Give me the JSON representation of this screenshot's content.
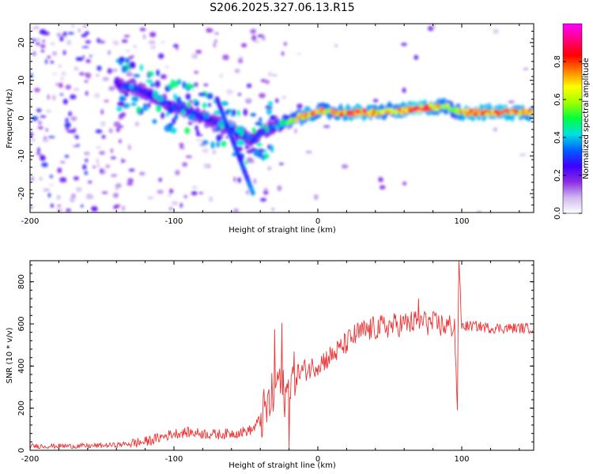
{
  "title": "S206.2025.327.06.13.R15",
  "chart_data": [
    {
      "type": "heatmap",
      "xlabel": "Height of straight line (km)",
      "ylabel": "Frequency (Hz)",
      "xlim": [
        -200,
        150
      ],
      "ylim": [
        -25,
        25
      ],
      "xticks": [
        -200,
        -100,
        0,
        100
      ],
      "yticks": [
        20,
        10,
        0,
        -10,
        -20
      ],
      "colorbar": {
        "label": "Normalized spectral amplitude",
        "range": [
          0,
          1
        ],
        "ticks": [
          0.0,
          0.2,
          0.4,
          0.6,
          0.8
        ],
        "colors": [
          "#ffffff",
          "#d0b8f0",
          "#8a2be2",
          "#3c00ff",
          "#0060ff",
          "#00e0e0",
          "#00ff40",
          "#a0ff00",
          "#ffff00",
          "#ff8000",
          "#ff0000",
          "#ff0080",
          "#ff00ff"
        ]
      },
      "ridge": {
        "name": "dominant frequency track",
        "x": [
          -140,
          -130,
          -120,
          -110,
          -100,
          -90,
          -80,
          -70,
          -60,
          -50,
          -45,
          -40,
          -35,
          -30,
          -25,
          -20,
          -15,
          -10,
          -5,
          0,
          10,
          20,
          30,
          40,
          50,
          60,
          70,
          80,
          90,
          95,
          100,
          110,
          120,
          130,
          140,
          150
        ],
        "y": [
          9,
          8,
          7,
          5,
          3,
          2,
          0,
          -1,
          -3,
          -5,
          -6,
          -4,
          -3,
          -2,
          -1.5,
          -1,
          0,
          0.5,
          1,
          2,
          1.5,
          1.5,
          1.5,
          1.5,
          2,
          2,
          2.5,
          3,
          3,
          2,
          1.5,
          1.5,
          1.5,
          1.5,
          1.5,
          1.5
        ],
        "amplitude": [
          0.3,
          0.25,
          0.3,
          0.3,
          0.3,
          0.3,
          0.3,
          0.25,
          0.3,
          0.35,
          0.3,
          0.3,
          0.3,
          0.35,
          0.45,
          0.6,
          0.7,
          0.75,
          0.8,
          0.7,
          0.7,
          0.8,
          0.85,
          0.75,
          0.7,
          0.8,
          0.9,
          0.75,
          0.7,
          0.55,
          0.8,
          0.85,
          0.8,
          0.85,
          0.8,
          0.75
        ]
      },
      "branch": {
        "name": "secondary descending track",
        "x": [
          -70,
          -65,
          -60,
          -55,
          -50,
          -45
        ],
        "y": [
          5,
          0,
          -5,
          -10,
          -15,
          -20
        ],
        "amplitude": [
          0.25,
          0.3,
          0.3,
          0.3,
          0.3,
          0.35
        ]
      }
    },
    {
      "type": "line",
      "xlabel": "Height of straight line (km)",
      "ylabel": "SNR (10 * v/v)",
      "xlim": [
        -200,
        150
      ],
      "ylim": [
        0,
        900
      ],
      "xticks": [
        -200,
        -100,
        0,
        100
      ],
      "yticks": [
        0,
        200,
        400,
        600,
        800
      ],
      "series": [
        {
          "name": "SNR",
          "color": "#ee3333",
          "x": [
            -200,
            -180,
            -160,
            -140,
            -120,
            -110,
            -100,
            -90,
            -80,
            -70,
            -60,
            -50,
            -45,
            -40,
            -35,
            -30,
            -28,
            -25,
            -22,
            -20,
            -18,
            -15,
            -10,
            -5,
            0,
            5,
            10,
            15,
            20,
            25,
            30,
            40,
            50,
            60,
            70,
            80,
            90,
            95,
            97,
            98,
            100,
            110,
            120,
            130,
            140,
            150
          ],
          "y": [
            20,
            20,
            20,
            25,
            40,
            60,
            80,
            85,
            80,
            75,
            80,
            90,
            100,
            150,
            200,
            280,
            350,
            300,
            250,
            300,
            340,
            360,
            380,
            390,
            410,
            430,
            450,
            480,
            510,
            540,
            560,
            580,
            590,
            600,
            610,
            600,
            590,
            590,
            200,
            850,
            590,
            590,
            580,
            580,
            580,
            580
          ],
          "spikes": [
            {
              "x": -30,
              "y": 575
            },
            {
              "x": -25,
              "y": 605
            },
            {
              "x": -20,
              "y": 10
            },
            {
              "x": 70,
              "y": 720
            },
            {
              "x": 75,
              "y": 650
            },
            {
              "x": 97,
              "y": 190
            },
            {
              "x": 98,
              "y": 900
            }
          ]
        }
      ]
    }
  ]
}
